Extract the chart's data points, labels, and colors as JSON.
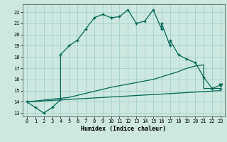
{
  "xlabel": "Humidex (Indice chaleur)",
  "bg_color": "#cce8e0",
  "grid_color": "#aad4cc",
  "line_color": "#006655",
  "xlim": [
    -0.5,
    23.5
  ],
  "ylim": [
    12.7,
    22.7
  ],
  "yticks": [
    13,
    14,
    15,
    16,
    17,
    18,
    19,
    20,
    21,
    22
  ],
  "xticks": [
    0,
    1,
    2,
    3,
    4,
    5,
    6,
    7,
    8,
    9,
    10,
    11,
    12,
    13,
    14,
    15,
    16,
    17,
    18,
    19,
    20,
    21,
    22,
    23
  ],
  "line1_x": [
    0,
    1,
    2,
    3,
    4,
    4,
    5,
    6,
    7,
    8,
    9,
    10,
    11,
    12,
    13,
    14,
    15,
    16,
    16,
    17,
    17,
    18,
    19,
    20,
    21,
    22,
    23
  ],
  "line1_y": [
    14,
    13.5,
    13.0,
    13.5,
    14.2,
    18.2,
    19.0,
    19.5,
    20.5,
    21.5,
    21.8,
    21.5,
    21.6,
    22.2,
    21.0,
    21.2,
    22.2,
    20.5,
    21.0,
    19.0,
    19.5,
    18.2,
    17.8,
    17.5,
    16.2,
    15.2,
    15.2
  ],
  "line2_x": [
    0,
    5,
    10,
    15,
    18,
    19,
    20,
    21,
    21,
    22,
    23
  ],
  "line2_y": [
    14.0,
    14.4,
    15.3,
    16.0,
    16.7,
    17.0,
    17.2,
    17.3,
    15.2,
    15.2,
    15.5
  ],
  "line3_x": [
    0,
    23
  ],
  "line3_y": [
    14.0,
    15.0
  ]
}
